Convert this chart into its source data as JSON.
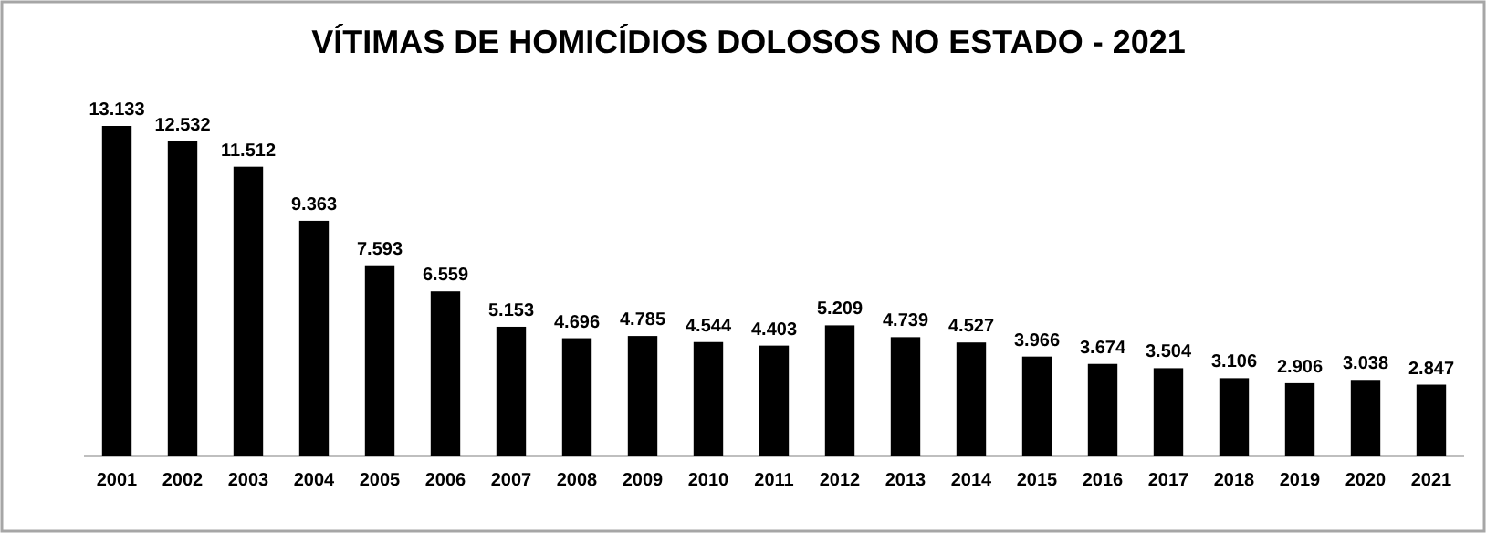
{
  "chart_data": {
    "type": "bar",
    "title": "VÍTIMAS DE HOMICÍDIOS DOLOSOS NO ESTADO - 2021",
    "categories": [
      "2001",
      "2002",
      "2003",
      "2004",
      "2005",
      "2006",
      "2007",
      "2008",
      "2009",
      "2010",
      "2011",
      "2012",
      "2013",
      "2014",
      "2015",
      "2016",
      "2017",
      "2018",
      "2019",
      "2020",
      "2021"
    ],
    "values": [
      13133,
      12532,
      11512,
      9363,
      7593,
      6559,
      5153,
      4696,
      4785,
      4544,
      4403,
      5209,
      4739,
      4527,
      3966,
      3674,
      3504,
      3106,
      2906,
      3038,
      2847
    ],
    "value_labels": [
      "13.133",
      "12.532",
      "11.512",
      "9.363",
      "7.593",
      "6.559",
      "5.153",
      "4.696",
      "4.785",
      "4.544",
      "4.403",
      "5.209",
      "4.739",
      "4.527",
      "3.966",
      "3.674",
      "3.504",
      "3.106",
      "2.906",
      "3.038",
      "2.847"
    ],
    "color": "#000000",
    "tick_labels": "x"
  }
}
